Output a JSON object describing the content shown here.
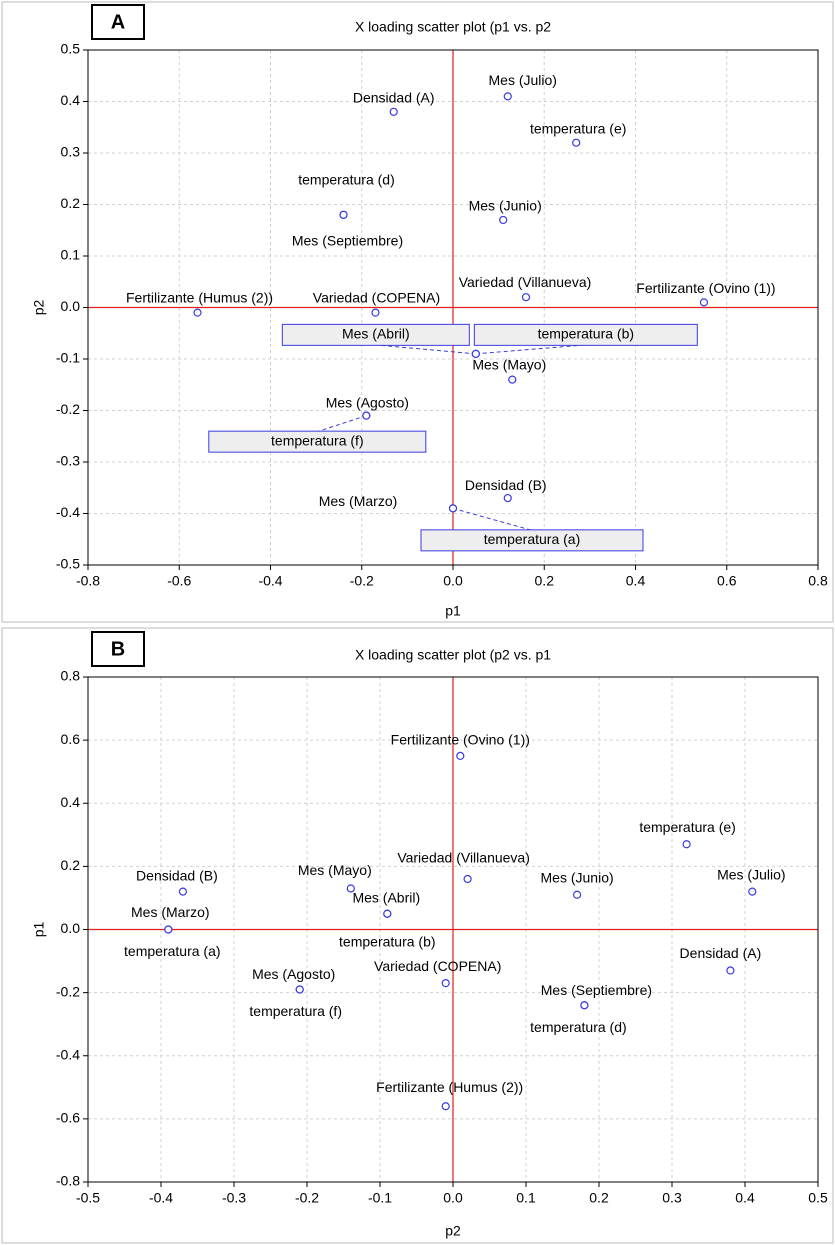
{
  "chart_data": [
    {
      "type": "scatter",
      "panel": "A",
      "title": "X loading scatter plot (p1 vs. p2",
      "xlabel": "p1",
      "ylabel": "p2",
      "color": "#3a3ae0",
      "labels": [
        "Densidad (A)",
        "Mes (Julio)",
        "temperatura (e)",
        "temperatura (d)",
        "Mes (Septiembre)",
        "Mes (Junio)",
        "Variedad (Villanueva)",
        "Fertilizante (Ovino (1))",
        "Fertilizante (Humus (2))",
        "Variedad (COPENA)",
        "Mes (Abril)",
        "temperatura (b)",
        "Mes (Mayo)",
        "Mes (Agosto)",
        "temperatura (f)",
        "Densidad (B)",
        "Mes (Marzo)",
        "temperatura (a)"
      ],
      "x": [
        -0.13,
        0.12,
        0.27,
        -0.24,
        -0.24,
        0.11,
        0.16,
        0.55,
        -0.56,
        -0.17,
        0.05,
        0.05,
        0.13,
        -0.19,
        -0.19,
        0.12,
        0.0,
        0.0
      ],
      "y": [
        0.38,
        0.41,
        0.32,
        0.18,
        0.18,
        0.17,
        0.02,
        0.01,
        -0.01,
        -0.01,
        -0.09,
        -0.09,
        -0.14,
        -0.21,
        -0.21,
        -0.37,
        -0.39,
        -0.39
      ],
      "xlim": [
        -0.8,
        0.8
      ],
      "xticks": [
        -0.8,
        -0.6,
        -0.4,
        -0.2,
        {
          "value": 0,
          "label": "0.0"
        },
        0.2,
        0.4,
        0.6,
        0.8
      ],
      "ylim": [
        -0.5,
        0.5
      ],
      "yticks": [
        -0.5,
        -0.4,
        -0.3,
        -0.2,
        -0.1,
        {
          "value": 0,
          "label": "0.0"
        },
        0.1,
        0.2,
        0.3,
        0.4,
        0.5
      ],
      "grid": true
    },
    {
      "type": "scatter",
      "panel": "B",
      "title": "X loading scatter plot (p2 vs. p1",
      "xlabel": "p2",
      "ylabel": "p1",
      "color": "#3a3ae0",
      "labels": [
        "Densidad (A)",
        "Mes (Julio)",
        "temperatura (e)",
        "temperatura (d)",
        "Mes (Septiembre)",
        "Mes (Junio)",
        "Variedad (Villanueva)",
        "Fertilizante (Ovino (1))",
        "Fertilizante (Humus (2))",
        "Variedad (COPENA)",
        "Mes (Abril)",
        "temperatura (b)",
        "Mes (Mayo)",
        "Mes (Agosto)",
        "temperatura (f)",
        "Densidad (B)",
        "Mes (Marzo)",
        "temperatura (a)"
      ],
      "x": [
        0.38,
        0.41,
        0.32,
        0.18,
        0.18,
        0.17,
        0.02,
        0.01,
        -0.01,
        -0.01,
        -0.09,
        -0.09,
        -0.14,
        -0.21,
        -0.21,
        -0.37,
        -0.39,
        -0.39
      ],
      "y": [
        -0.13,
        0.12,
        0.27,
        -0.24,
        -0.24,
        0.11,
        0.16,
        0.55,
        -0.56,
        -0.17,
        0.05,
        0.05,
        0.13,
        -0.19,
        -0.19,
        0.12,
        0.0,
        0.0
      ],
      "xlim": [
        -0.5,
        0.5
      ],
      "xticks": [
        -0.5,
        -0.4,
        -0.3,
        -0.2,
        -0.1,
        {
          "value": 0,
          "label": "0.0"
        },
        0.1,
        0.2,
        0.3,
        0.4,
        0.5
      ],
      "ylim": [
        -0.8,
        0.8
      ],
      "yticks": [
        -0.8,
        -0.6,
        -0.4,
        -0.2,
        {
          "value": 0,
          "label": "0.0"
        },
        0.2,
        0.4,
        0.6,
        0.8
      ],
      "grid": true
    }
  ]
}
